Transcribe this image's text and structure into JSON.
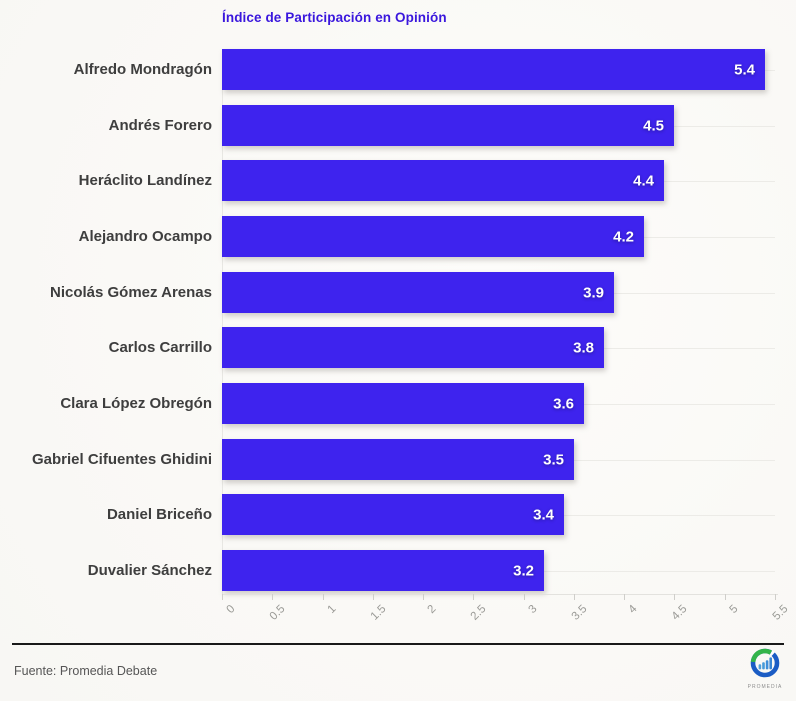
{
  "title": "Índice de Participación en Opinión",
  "footer": {
    "source": "Fuente: Promedia Debate",
    "logo_text": "PROMEDIA"
  },
  "colors": {
    "bar": "#3e23ee",
    "title": "#3a17dd",
    "background": "#faf9f6",
    "category_text": "#3e3e3e",
    "value_text": "#ffffff",
    "tick_text": "#9a9a96",
    "gridline": "#ecebe7",
    "divider": "#191919",
    "source_text": "#565656",
    "logo_blue": "#1b5cc4",
    "logo_green": "#33b44a",
    "logo_bars": "#3f8fd9"
  },
  "chart_data": {
    "type": "bar",
    "orientation": "horizontal",
    "title": "Índice de Participación en Opinión",
    "categories": [
      "Alfredo Mondragón",
      "Andrés Forero",
      "Heráclito Landínez",
      "Alejandro Ocampo",
      "Nicolás Gómez Arenas",
      "Carlos Carrillo",
      "Clara López Obregón",
      "Gabriel Cifuentes Ghidini",
      "Daniel Briceño",
      "Duvalier Sánchez"
    ],
    "values": [
      5.4,
      4.5,
      4.4,
      4.2,
      3.9,
      3.8,
      3.6,
      3.5,
      3.4,
      3.2
    ],
    "xlabel": "",
    "ylabel": "",
    "xlim": [
      0,
      5.5
    ],
    "x_ticks": [
      0,
      0.5,
      1,
      1.5,
      2,
      2.5,
      3,
      3.5,
      4,
      4.5,
      5,
      5.5
    ],
    "x_tick_labels": [
      "0",
      "0.5",
      "1",
      "1.5",
      "2",
      "2.5",
      "3",
      "3.5",
      "4",
      "4.5",
      "5",
      "5.5"
    ],
    "grid": "horizontal row lines, on",
    "legend": "none",
    "value_labels": "inside bar end, white bold"
  }
}
